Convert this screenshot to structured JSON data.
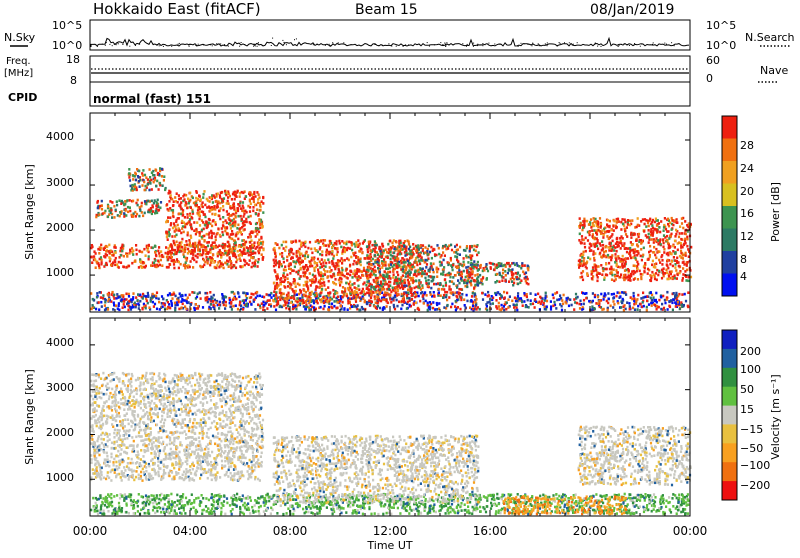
{
  "header": {
    "station": "Hokkaido East (fitACF)",
    "beam": "Beam 15",
    "date": "08/Jan/2019"
  },
  "noise_panel": {
    "left_label": "N.Sky",
    "right_label": "N.Search",
    "left_ticks": [
      "10^5",
      "10^0"
    ],
    "right_ticks": [
      "10^5",
      "10^0"
    ]
  },
  "freq_panel": {
    "left_label_1": "Freq.",
    "left_label_2": "[MHz]",
    "right_label": "Nave",
    "left_ticks": [
      "18",
      "8"
    ],
    "right_ticks": [
      "60",
      "0"
    ]
  },
  "cpid_panel": {
    "label": "CPID",
    "mode": "normal (fast) 151"
  },
  "power_panel": {
    "ylabel": "Slant Range [km]",
    "yticks": [
      "4000",
      "3000",
      "2000",
      "1000"
    ],
    "colorbar_label": "Power [dB]",
    "colorbar_ticks": [
      "28",
      "24",
      "20",
      "16",
      "12",
      "8",
      "4"
    ]
  },
  "velocity_panel": {
    "ylabel": "Slant Range [km]",
    "yticks": [
      "4000",
      "3000",
      "2000",
      "1000"
    ],
    "colorbar_label": "Velocity [m s⁻¹]",
    "colorbar_ticks": [
      "200",
      "100",
      "50",
      "15",
      "−15",
      "−50",
      "−100",
      "−200"
    ]
  },
  "xaxis": {
    "label": "Time UT",
    "ticks": [
      "00:00",
      "04:00",
      "08:00",
      "12:00",
      "16:00",
      "20:00",
      "00:00"
    ]
  },
  "chart_data": {
    "type": "heatmap",
    "x_range_hours": [
      0,
      24
    ],
    "y_range_km": [
      180,
      4600
    ],
    "power_scale": {
      "colors": [
        "#0010f0",
        "#2040a0",
        "#2c7a64",
        "#3d9450",
        "#d8c020",
        "#f0a020",
        "#f07010",
        "#ee2010"
      ],
      "levels_db": [
        0,
        4,
        8,
        12,
        16,
        20,
        24,
        28,
        32
      ]
    },
    "velocity_scale": {
      "colors": [
        "#ee1010",
        "#f07010",
        "#f8a020",
        "#e8c040",
        "#c8c8c0",
        "#60c040",
        "#309040",
        "#2060a0",
        "#1020c0"
      ],
      "levels_ms": [
        -250,
        -200,
        -100,
        -50,
        -15,
        15,
        50,
        100,
        200,
        250
      ]
    },
    "power_regions": [
      {
        "t": [
          0.0,
          6.9
        ],
        "r": [
          1180,
          1700
        ],
        "level": "high"
      },
      {
        "t": [
          3.0,
          6.9
        ],
        "r": [
          1500,
          2900
        ],
        "level": "high"
      },
      {
        "t": [
          0.2,
          2.8
        ],
        "r": [
          2300,
          2700
        ],
        "level": "mid"
      },
      {
        "t": [
          1.5,
          3.0
        ],
        "r": [
          2900,
          3400
        ],
        "level": "mid"
      },
      {
        "t": [
          0.0,
          23.9
        ],
        "r": [
          250,
          650
        ],
        "level": "mixed"
      },
      {
        "t": [
          7.3,
          13.0
        ],
        "r": [
          400,
          1800
        ],
        "level": "high"
      },
      {
        "t": [
          11.0,
          15.5
        ],
        "r": [
          700,
          1700
        ],
        "level": "mid"
      },
      {
        "t": [
          15.0,
          17.5
        ],
        "r": [
          800,
          1300
        ],
        "level": "mid"
      },
      {
        "t": [
          19.5,
          24.0
        ],
        "r": [
          900,
          2300
        ],
        "level": "high"
      }
    ],
    "velocity_regions": [
      {
        "t": [
          0.0,
          6.9
        ],
        "r": [
          1000,
          3400
        ],
        "level": "near-zero"
      },
      {
        "t": [
          0.0,
          23.9
        ],
        "r": [
          250,
          700
        ],
        "level": "positive"
      },
      {
        "t": [
          16.5,
          21.5
        ],
        "r": [
          250,
          650
        ],
        "level": "negative"
      },
      {
        "t": [
          7.3,
          15.5
        ],
        "r": [
          500,
          2000
        ],
        "level": "near-zero"
      },
      {
        "t": [
          19.5,
          24.0
        ],
        "r": [
          900,
          2200
        ],
        "level": "near-zero"
      }
    ]
  }
}
